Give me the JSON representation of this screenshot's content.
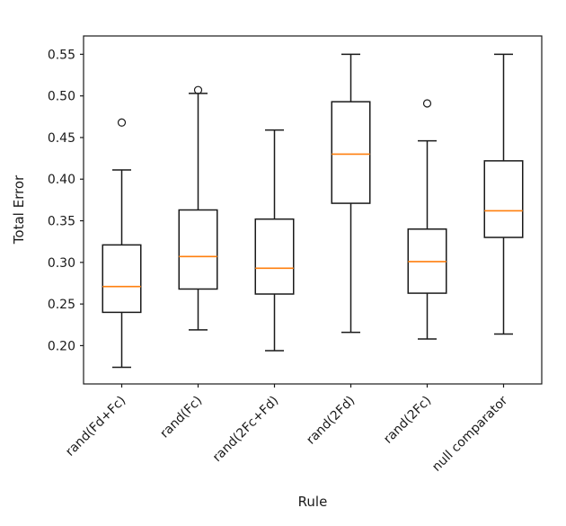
{
  "figure": {
    "background": "#ffffff"
  },
  "chart_data": {
    "type": "boxplot",
    "title": "",
    "xlabel": "Rule",
    "ylabel": "Total Error",
    "categories": [
      "rand(Fd+Fc)",
      "rand(Fc)",
      "rand(2Fc+Fd)",
      "rand(2Fd)",
      "rand(2Fc)",
      "null comparator"
    ],
    "ylim": [
      0.154,
      0.572
    ],
    "yticks": [
      0.2,
      0.25,
      0.3,
      0.35,
      0.4,
      0.45,
      0.5,
      0.55
    ],
    "grid": false,
    "legend": "none",
    "boxes": [
      {
        "label": "rand(Fd+Fc)",
        "whislo": 0.174,
        "q1": 0.24,
        "med": 0.271,
        "q3": 0.321,
        "whishi": 0.411,
        "fliers": [
          0.468
        ]
      },
      {
        "label": "rand(Fc)",
        "whislo": 0.219,
        "q1": 0.268,
        "med": 0.307,
        "q3": 0.363,
        "whishi": 0.503,
        "fliers": [
          0.507
        ]
      },
      {
        "label": "rand(2Fc+Fd)",
        "whislo": 0.194,
        "q1": 0.262,
        "med": 0.293,
        "q3": 0.352,
        "whishi": 0.459,
        "fliers": []
      },
      {
        "label": "rand(2Fd)",
        "whislo": 0.216,
        "q1": 0.371,
        "med": 0.43,
        "q3": 0.493,
        "whishi": 0.55,
        "fliers": []
      },
      {
        "label": "rand(2Fc)",
        "whislo": 0.208,
        "q1": 0.263,
        "med": 0.301,
        "q3": 0.34,
        "whishi": 0.446,
        "fliers": [
          0.491
        ]
      },
      {
        "label": "null comparator",
        "whislo": 0.214,
        "q1": 0.33,
        "med": 0.362,
        "q3": 0.422,
        "whishi": 0.55,
        "fliers": []
      }
    ],
    "colors": {
      "line": "#1a1a1a",
      "median": "#ff7f0e",
      "box_fill": "#ffffff",
      "background": "#ffffff"
    }
  }
}
